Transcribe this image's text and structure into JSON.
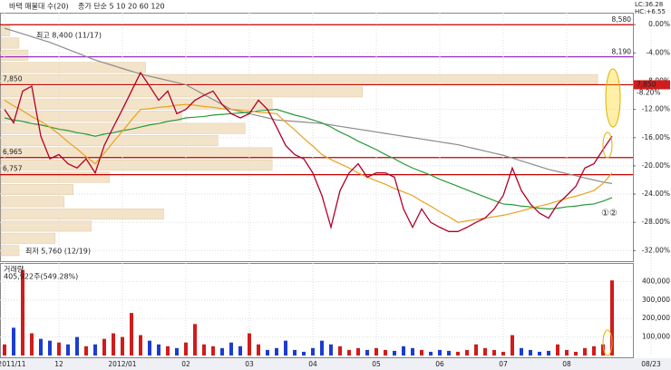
{
  "chart_data": {
    "type": "line",
    "legend_left": "바택 매물대 수(20)",
    "legend_ma": "종가 단순 5 10 20 60 120",
    "lc_label": "LC:36.28",
    "hc_label": "HC:+6.55",
    "high_annotation": "최고 8,400 (11/17)",
    "low_annotation": "최저 5,760 (12/19)",
    "marker_text": "①②",
    "current_price": {
      "value": 7850,
      "label": "7,850",
      "pct_label": "-8.20%"
    },
    "categories": [
      "2011/11",
      null,
      null,
      null,
      null,
      null,
      "12",
      null,
      null,
      null,
      null,
      null,
      null,
      "2012/01",
      null,
      null,
      null,
      null,
      null,
      null,
      "02",
      null,
      null,
      null,
      null,
      null,
      null,
      "03",
      null,
      null,
      null,
      null,
      null,
      null,
      "04",
      null,
      null,
      null,
      null,
      null,
      null,
      "05",
      null,
      null,
      null,
      null,
      null,
      null,
      "06",
      null,
      null,
      null,
      null,
      null,
      null,
      "07",
      null,
      null,
      null,
      null,
      null,
      null,
      "08",
      null,
      null,
      null,
      null,
      null,
      null,
      "08/23"
    ],
    "ylim": [
      -33.5,
      1.7
    ],
    "yticks": [
      {
        "value": 0,
        "label": "0.00%"
      },
      {
        "value": -4,
        "label": "-4.00%"
      },
      {
        "value": -8,
        "label": "-8.00%"
      },
      {
        "value": -12,
        "label": "-12.00%"
      },
      {
        "value": -16,
        "label": "-16.00%"
      },
      {
        "value": -20,
        "label": "-20.00%"
      },
      {
        "value": -24,
        "label": "-24.00%"
      },
      {
        "value": -28,
        "label": "-28.00%"
      },
      {
        "value": -32,
        "label": "-32.00%"
      }
    ],
    "price_levels": [
      {
        "value": 8580,
        "label": "8,580",
        "color": "#c00000",
        "side": "right"
      },
      {
        "value": 8190,
        "label": "8,190",
        "color": "#9b30c8",
        "side": "right"
      },
      {
        "value": 7850,
        "label": "7,850",
        "color": "#c00000",
        "side": "left"
      },
      {
        "value": 6965,
        "label": "6,965",
        "color": "#c00000",
        "side": "left"
      },
      {
        "value": 6757,
        "label": "6,757",
        "color": "#c00000",
        "side": "left"
      }
    ],
    "series": [
      {
        "name": "종가",
        "color": "#b0002a",
        "width": 1.3,
        "values": [
          -12,
          -13.9,
          -9.4,
          -8.7,
          -15.8,
          -19,
          -18.4,
          -19.7,
          -20.3,
          -19,
          -21,
          -17.1,
          -14.5,
          -12,
          -9.4,
          -6.8,
          -8.7,
          -10.7,
          -9.4,
          -12.6,
          -12,
          -10.7,
          -10,
          -9.4,
          -11.3,
          -12.6,
          -13.2,
          -12.6,
          -10.7,
          -12,
          -14.5,
          -17.1,
          -18.4,
          -19,
          -21,
          -24.2,
          -28.7,
          -23.5,
          -21,
          -19.7,
          -21.6,
          -21,
          -21,
          -21.6,
          -26.1,
          -28.7,
          -26.1,
          -28,
          -28.7,
          -29.3,
          -29.3,
          -28.7,
          -28,
          -27.4,
          -26.1,
          -24.2,
          -20.3,
          -23.5,
          -25.4,
          -26.7,
          -27.4,
          -25.4,
          -24.2,
          -22.9,
          -20.3,
          -19.7,
          -17.7,
          -15.8,
          null,
          null
        ]
      },
      {
        "name": "20",
        "color": "#e6a21e",
        "width": 1.2,
        "values": [
          -10.7,
          -11.5,
          -12.2,
          -13,
          -13.7,
          -14.5,
          -15.5,
          -16.6,
          -17.6,
          -18.7,
          -19.7,
          -18.2,
          -16.6,
          -15.1,
          -13.5,
          -12,
          -11.9,
          -11.7,
          -11.6,
          -11.4,
          -11.3,
          -11.4,
          -11.6,
          -11.7,
          -11.9,
          -12,
          -12.1,
          -12.2,
          -12.4,
          -12.5,
          -12.6,
          -13.8,
          -14.9,
          -16.1,
          -17.2,
          -18.4,
          -19.1,
          -19.7,
          -20.3,
          -21,
          -21.6,
          -22.1,
          -22.6,
          -23.2,
          -23.7,
          -24.2,
          -25,
          -25.7,
          -26.5,
          -27.2,
          -28,
          -27.8,
          -27.6,
          -27.4,
          -27.2,
          -27,
          -26.7,
          -26.4,
          -26,
          -25.7,
          -25.4,
          -25,
          -24.6,
          -24.3,
          -23.9,
          -23.5,
          -22.5,
          -21,
          null,
          null
        ]
      },
      {
        "name": "60",
        "color": "#2a9a3a",
        "width": 1.2,
        "values": [
          -13.2,
          -13.5,
          -13.7,
          -14,
          -14.2,
          -14.5,
          -14.8,
          -15,
          -15.3,
          -15.5,
          -15.8,
          -15.5,
          -15.3,
          -15,
          -14.8,
          -14.5,
          -14.2,
          -14,
          -13.7,
          -13.5,
          -13.2,
          -13.1,
          -13,
          -12.8,
          -12.7,
          -12.6,
          -12.5,
          -12.4,
          -12.2,
          -12.1,
          -12,
          -12.4,
          -12.8,
          -13.1,
          -13.5,
          -13.9,
          -14.5,
          -15.2,
          -15.8,
          -16.5,
          -17.1,
          -17.7,
          -18.4,
          -19,
          -19.7,
          -20.3,
          -20.8,
          -21.3,
          -21.9,
          -22.4,
          -22.9,
          -23.4,
          -23.9,
          -24.4,
          -24.9,
          -25.4,
          -25.5,
          -25.7,
          -25.8,
          -26,
          -26.1,
          -26,
          -25.8,
          -25.7,
          -25.5,
          -25.4,
          -25,
          -24.5,
          null,
          null
        ]
      },
      {
        "name": "120",
        "color": "#8c8c8c",
        "width": 1.2,
        "values": [
          -0.5,
          -0.9,
          -1.3,
          -1.7,
          -2.1,
          -2.5,
          -3,
          -3.5,
          -4,
          -4.5,
          -5,
          -5.4,
          -5.8,
          -6.2,
          -6.6,
          -7,
          -7.3,
          -7.6,
          -7.9,
          -8.2,
          -8.5,
          -9.2,
          -9.9,
          -10.6,
          -11.3,
          -12,
          -12.3,
          -12.6,
          -12.9,
          -13.2,
          -13.5,
          -13.6,
          -13.7,
          -13.8,
          -13.9,
          -14,
          -14.2,
          -14.4,
          -14.6,
          -14.8,
          -15,
          -15.2,
          -15.4,
          -15.6,
          -15.8,
          -16,
          -16.2,
          -16.4,
          -16.6,
          -16.8,
          -17,
          -17.3,
          -17.6,
          -17.9,
          -18.2,
          -18.5,
          -18.9,
          -19.3,
          -19.7,
          -20.1,
          -20.5,
          -20.8,
          -21.1,
          -21.4,
          -21.7,
          -22,
          -22.3,
          -22.5,
          null,
          null
        ]
      }
    ],
    "volume_profile": {
      "color": "#f3e3c8",
      "xlim": [
        0,
        700
      ],
      "values": [
        10,
        20,
        30,
        160,
        660,
        400,
        300,
        200,
        270,
        240,
        300,
        300,
        120,
        80,
        70,
        180,
        100,
        60,
        20
      ]
    },
    "volume": {
      "title": "거래량",
      "last_label": "405,922주(549.28%)",
      "ylim": [
        0,
        500000
      ],
      "yticks": [
        {
          "value": 400000,
          "label": "400,000"
        },
        {
          "value": 300000,
          "label": "300,000"
        },
        {
          "value": 200000,
          "label": "200,000"
        },
        {
          "value": 100000,
          "label": "100,000"
        }
      ],
      "up_color": "#d01c1c",
      "down_color": "#1c3cd0",
      "values": [
        60000,
        150000,
        463000,
        120000,
        90000,
        80000,
        70000,
        60000,
        100000,
        50000,
        60000,
        90000,
        120000,
        100000,
        230000,
        110000,
        80000,
        60000,
        50000,
        40000,
        70000,
        170000,
        60000,
        50000,
        40000,
        70000,
        50000,
        120000,
        60000,
        30000,
        40000,
        80000,
        30000,
        20000,
        40000,
        80000,
        60000,
        50000,
        30000,
        40000,
        30000,
        40000,
        30000,
        25000,
        50000,
        40000,
        30000,
        20000,
        30000,
        25000,
        20000,
        30000,
        60000,
        40000,
        30000,
        20000,
        110000,
        40000,
        30000,
        20000,
        25000,
        60000,
        30000,
        20000,
        40000,
        50000,
        60000,
        405922,
        null,
        null
      ]
    }
  }
}
